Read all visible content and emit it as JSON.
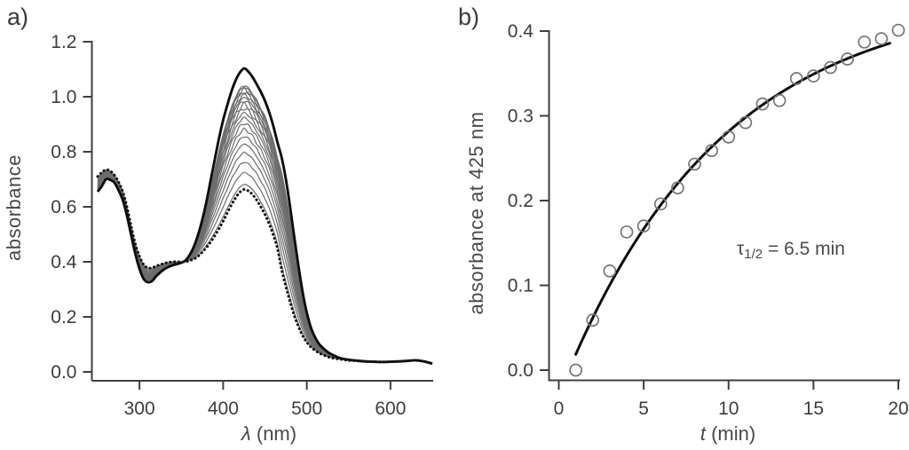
{
  "figure": {
    "panel_a_label": "a)",
    "panel_b_label": "b)"
  },
  "colors": {
    "background": "#ffffff",
    "axis": "#3f3f3f",
    "tick_text": "#3d3d3d",
    "label_text": "#484848",
    "gray_curve": "#6d6d6d",
    "black_curve": "#0d0d0d",
    "dotted_curve": "#161616",
    "marker_stroke": "#757575",
    "fit_line": "#0d0d0d"
  },
  "chart_data": [
    {
      "id": "spectra",
      "panel": "a",
      "type": "line",
      "title": "",
      "xlabel": "λ (nm)",
      "xlabel_parts": {
        "symbol": "λ",
        "unit": " (nm)"
      },
      "ylabel": "absorbance",
      "xlim": [
        250,
        650
      ],
      "ylim": [
        0.0,
        1.2
      ],
      "xticks": [
        300,
        400,
        500,
        600
      ],
      "xtick_labels": [
        "300",
        "400",
        "500",
        "600"
      ],
      "yticks": [
        0.0,
        0.2,
        0.4,
        0.6,
        0.8,
        1.0,
        1.2
      ],
      "ytick_labels": [
        "0.0",
        "0.2",
        "0.4",
        "0.6",
        "0.8",
        "1.0",
        "1.2"
      ],
      "grid": false,
      "description": "UV-vis absorption spectra evolving in time: dotted = initial spectrum, thin gray = intermediate spectra recorded during reaction, bold black = final spectrum; band at 425 nm grows",
      "wavelength_nm": [
        250,
        255,
        260,
        265,
        270,
        275,
        280,
        285,
        290,
        295,
        300,
        305,
        310,
        315,
        320,
        325,
        330,
        335,
        340,
        345,
        350,
        355,
        360,
        365,
        370,
        375,
        380,
        385,
        390,
        395,
        400,
        405,
        410,
        415,
        420,
        425,
        430,
        435,
        440,
        445,
        450,
        455,
        460,
        465,
        470,
        475,
        480,
        485,
        490,
        495,
        500,
        505,
        510,
        515,
        520,
        525,
        530,
        535,
        540,
        550,
        560,
        570,
        580,
        590,
        600,
        610,
        620,
        630,
        640,
        650
      ],
      "initial_spectrum": [
        0.71,
        0.725,
        0.735,
        0.73,
        0.715,
        0.69,
        0.655,
        0.6,
        0.53,
        0.465,
        0.42,
        0.39,
        0.378,
        0.378,
        0.385,
        0.39,
        0.395,
        0.398,
        0.4,
        0.4,
        0.4,
        0.4,
        0.405,
        0.41,
        0.42,
        0.435,
        0.452,
        0.472,
        0.495,
        0.52,
        0.548,
        0.578,
        0.608,
        0.633,
        0.653,
        0.663,
        0.658,
        0.645,
        0.625,
        0.6,
        0.572,
        0.538,
        0.497,
        0.448,
        0.37,
        0.31,
        0.255,
        0.205,
        0.165,
        0.132,
        0.108,
        0.09,
        0.078,
        0.068,
        0.061,
        0.055,
        0.051,
        0.048,
        0.046,
        0.042,
        0.04,
        0.038,
        0.037,
        0.036,
        0.037,
        0.038,
        0.04,
        0.042,
        0.038,
        0.03
      ],
      "final_spectrum": [
        0.655,
        0.675,
        0.7,
        0.698,
        0.688,
        0.66,
        0.625,
        0.568,
        0.498,
        0.43,
        0.375,
        0.338,
        0.326,
        0.33,
        0.348,
        0.362,
        0.374,
        0.382,
        0.388,
        0.392,
        0.397,
        0.405,
        0.425,
        0.455,
        0.498,
        0.552,
        0.618,
        0.695,
        0.772,
        0.848,
        0.915,
        0.97,
        1.02,
        1.06,
        1.088,
        1.103,
        1.092,
        1.072,
        1.046,
        1.018,
        0.985,
        0.944,
        0.893,
        0.833,
        0.778,
        0.7,
        0.6,
        0.49,
        0.385,
        0.29,
        0.215,
        0.16,
        0.125,
        0.1,
        0.085,
        0.072,
        0.063,
        0.056,
        0.05,
        0.044,
        0.041,
        0.038,
        0.037,
        0.036,
        0.037,
        0.038,
        0.04,
        0.042,
        0.038,
        0.03
      ],
      "intermediate_fractions": [
        0.042,
        0.139,
        0.226,
        0.304,
        0.375,
        0.438,
        0.495,
        0.546,
        0.592,
        0.633,
        0.67,
        0.703,
        0.733,
        0.76,
        0.785,
        0.806,
        0.826,
        0.844,
        0.859
      ]
    },
    {
      "id": "kinetics",
      "panel": "b",
      "type": "scatter",
      "title": "",
      "xlabel": "t (min)",
      "xlabel_parts": {
        "symbol": "t",
        "unit": " (min)"
      },
      "ylabel": "absorbance at 425 nm",
      "xlim": [
        0,
        20
      ],
      "ylim": [
        0.0,
        0.4
      ],
      "xticks": [
        0,
        5,
        10,
        15,
        20
      ],
      "xtick_labels": [
        "0",
        "5",
        "10",
        "15",
        "20"
      ],
      "yticks": [
        0.0,
        0.1,
        0.2,
        0.3,
        0.4
      ],
      "ytick_labels": [
        "0.0",
        "0.1",
        "0.2",
        "0.3",
        "0.4"
      ],
      "grid": false,
      "annotation": {
        "text": "τ1/2 = 6.5 min",
        "tau_symbol": "τ",
        "subscript": "1/2",
        "rest": " = 6.5 min"
      },
      "t_min": [
        1,
        2,
        3,
        4,
        5,
        6,
        7,
        8,
        9,
        10,
        11,
        12,
        13,
        14,
        15,
        16,
        17,
        18,
        19,
        20
      ],
      "absorbance_425nm": [
        0.0,
        0.059,
        0.117,
        0.163,
        0.17,
        0.196,
        0.215,
        0.243,
        0.259,
        0.275,
        0.292,
        0.314,
        0.318,
        0.344,
        0.347,
        0.357,
        0.367,
        0.387,
        0.391,
        0.401
      ],
      "fit": {
        "model": "A_inf*(1-exp(-(t-t0)/tau))",
        "A_inf": 0.445,
        "t0_min": 0.6,
        "tau_min": 9.38,
        "half_life_min": 6.5,
        "t_start": 1.0,
        "t_end": 19.7
      }
    }
  ]
}
